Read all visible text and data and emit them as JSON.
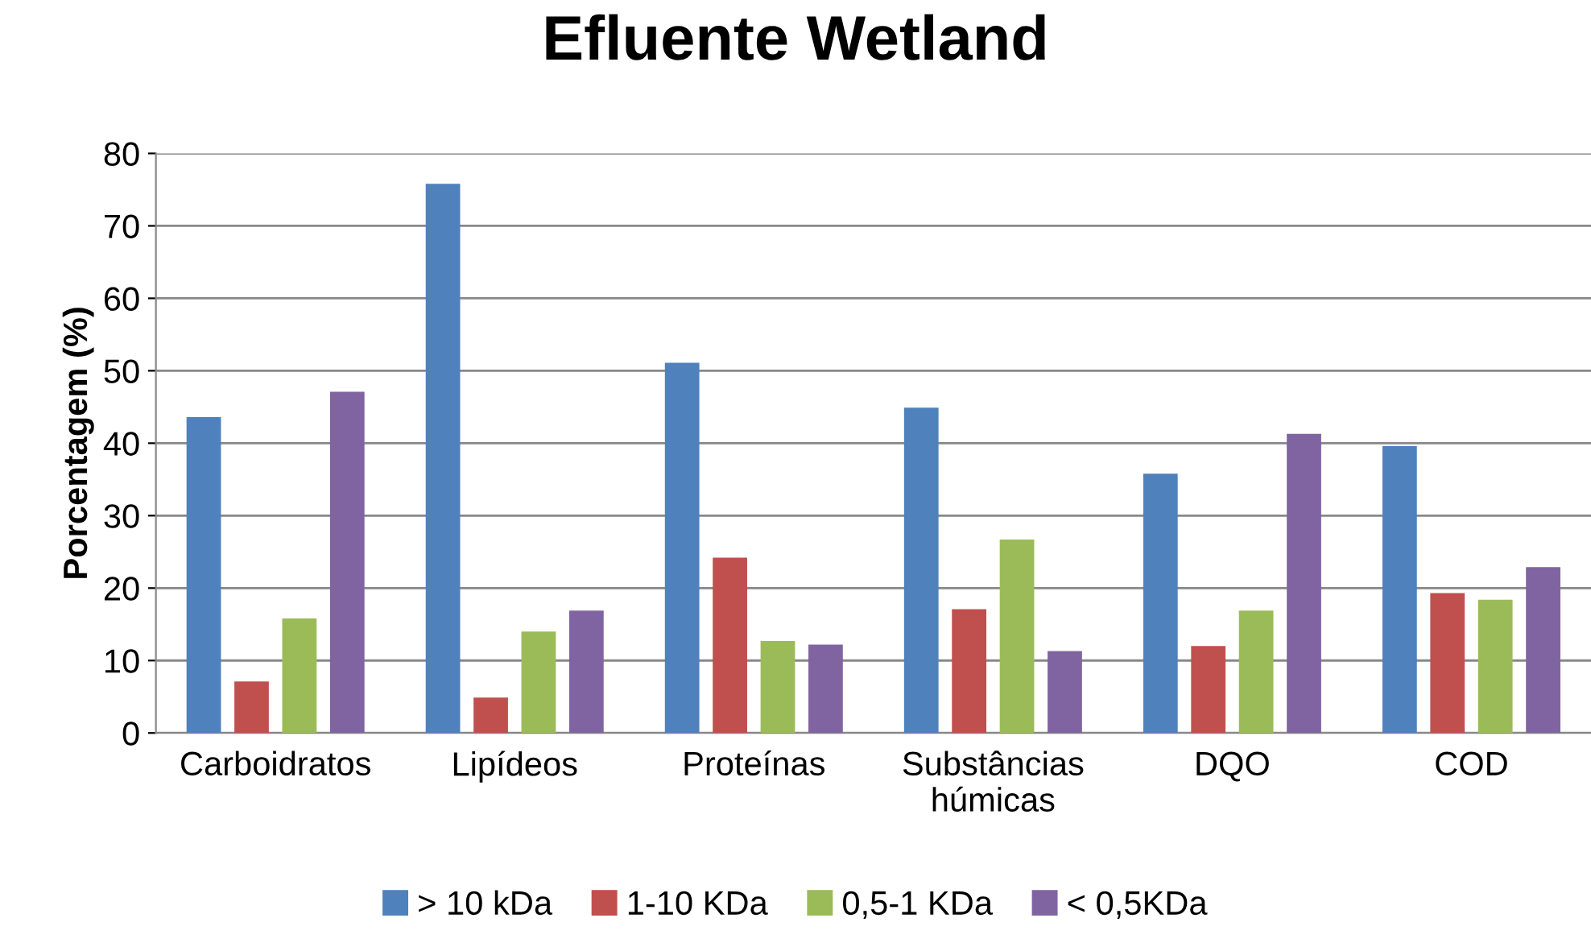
{
  "chart_data": {
    "type": "bar",
    "title": "Efluente Wetland",
    "ylabel": "Porcentagem (%)",
    "categories": [
      "Carboidratos",
      "Lipídeos",
      "Proteínas",
      "Substâncias\nhúmicas",
      "DQO",
      "COD"
    ],
    "series": [
      {
        "name": "> 10 kDa",
        "color": "#4f81bd",
        "values": [
          43.6,
          75.8,
          51.1,
          44.9,
          35.8,
          39.6
        ]
      },
      {
        "name": "1-10 KDa",
        "color": "#c0504d",
        "values": [
          7.1,
          4.9,
          24.2,
          17.1,
          12.0,
          19.3
        ]
      },
      {
        "name": "0,5-1 KDa",
        "color": "#9bbb59",
        "values": [
          15.8,
          14.0,
          12.7,
          26.7,
          16.9,
          18.4
        ]
      },
      {
        "name": "< 0,5KDa",
        "color": "#8064a2",
        "values": [
          47.1,
          16.9,
          12.2,
          11.3,
          41.3,
          22.9
        ]
      }
    ],
    "ylim": [
      0,
      80
    ],
    "yticks": [
      0,
      10,
      20,
      30,
      40,
      50,
      60,
      70,
      80
    ],
    "grid": "y",
    "legend": "bottom"
  }
}
